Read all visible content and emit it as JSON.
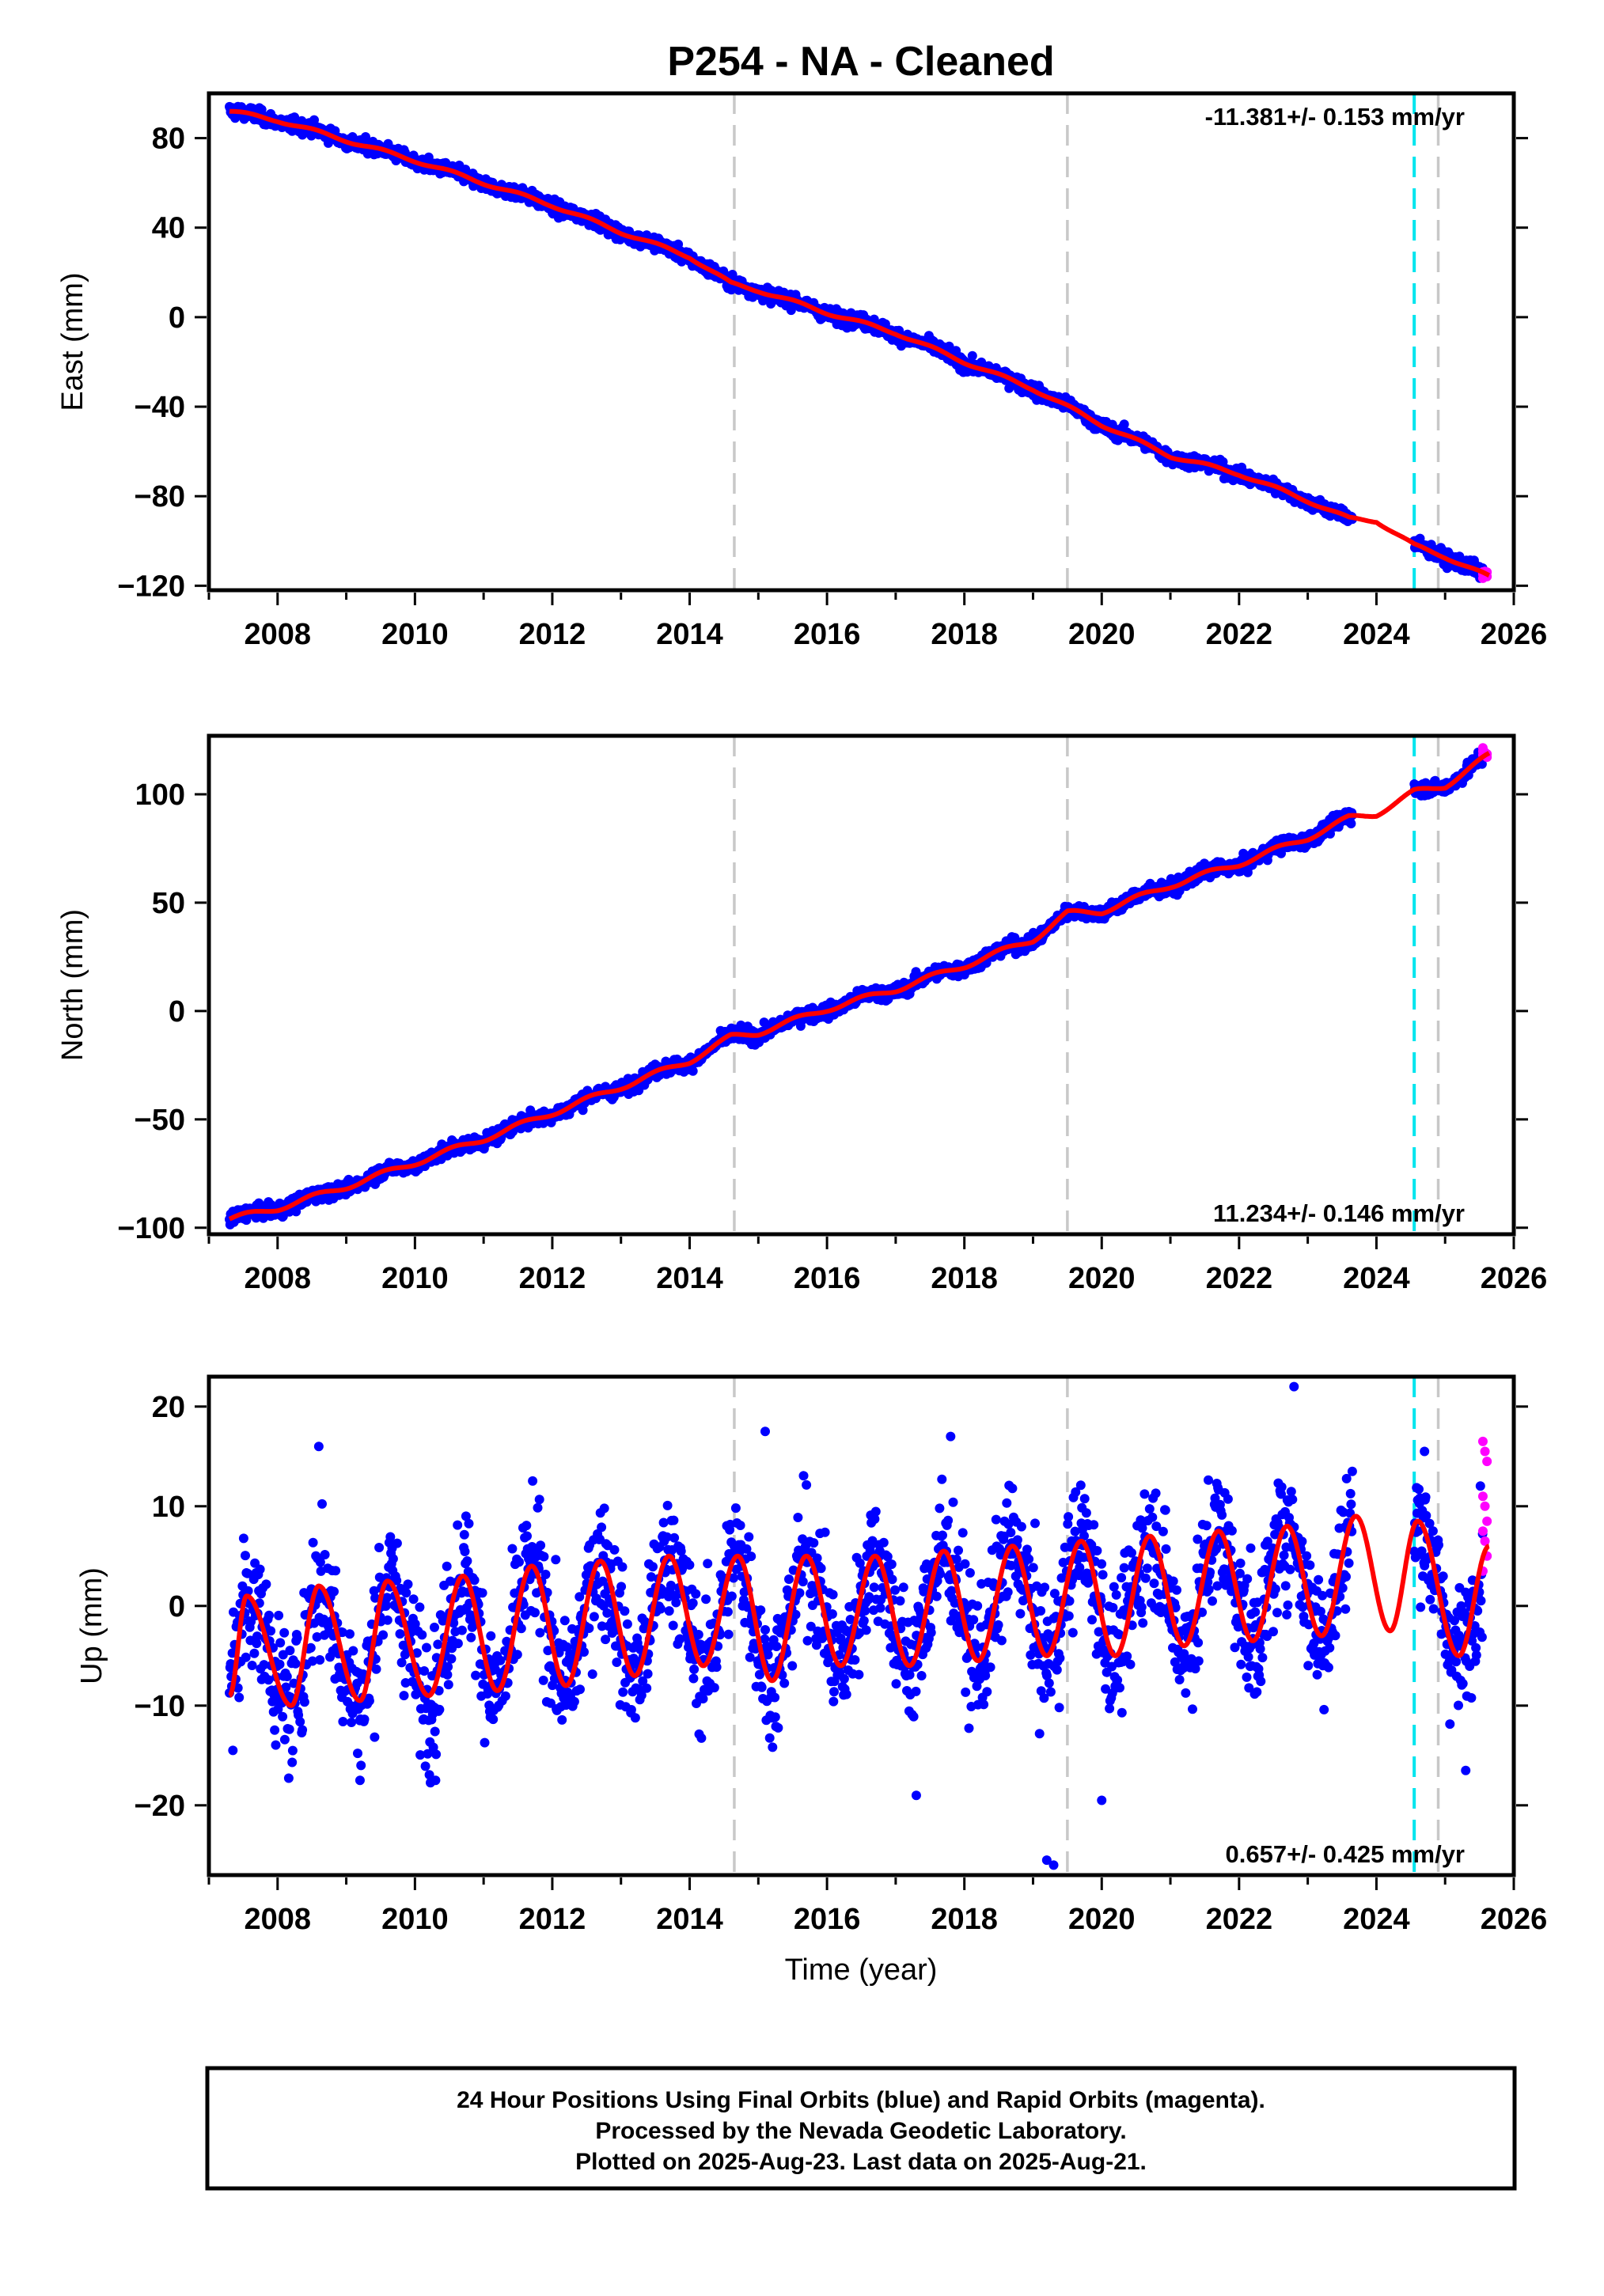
{
  "title": "P254  - NA - Cleaned",
  "xlabel": "Time (year)",
  "footer": {
    "line1": "24 Hour Positions Using Final Orbits (blue) and Rapid Orbits (magenta).",
    "line2": "Processed by the Nevada Geodetic Laboratory.",
    "line3": "Plotted on 2025-Aug-23. Last data on 2025-Aug-21."
  },
  "colors": {
    "final_orbits": "#0000ff",
    "rapid_orbits": "#ff00ff",
    "model_fit": "#ff0000",
    "event_line": "#00e5ee",
    "marker_line": "#c8c8c8"
  },
  "chart_data": [
    {
      "type": "scatter",
      "panel": "east",
      "ylabel": "East (mm)",
      "rate_text": "-11.381+/- 0.153 mm/yr",
      "rate_position": "top-right",
      "xlim": [
        2007.0,
        2026.0
      ],
      "ylim": [
        -122,
        100
      ],
      "xticks": [
        2008,
        2010,
        2012,
        2014,
        2016,
        2018,
        2020,
        2022,
        2024,
        2026
      ],
      "yticks": [
        80,
        40,
        0,
        -40,
        -80,
        -120
      ],
      "vertical_lines": [
        {
          "x": 2014.65,
          "style": "dashed",
          "color": "gray"
        },
        {
          "x": 2019.5,
          "style": "dashed",
          "color": "gray"
        },
        {
          "x": 2024.55,
          "style": "dashed",
          "color": "cyan"
        },
        {
          "x": 2024.9,
          "style": "dashed",
          "color": "gray"
        }
      ],
      "data_range": [
        2007.3,
        2025.64
      ],
      "data_gap": [
        2023.65,
        2024.55
      ],
      "fit_x": [
        2007.3,
        2008.0,
        2009.0,
        2010.0,
        2011.0,
        2012.0,
        2013.0,
        2014.0,
        2014.6,
        2015.0,
        2016.0,
        2017.0,
        2018.0,
        2019.0,
        2019.5,
        2020.0,
        2021.0,
        2022.0,
        2023.0,
        2023.6,
        2024.0,
        2024.55,
        2025.0,
        2025.64
      ],
      "fit_y": [
        92,
        88,
        79,
        70,
        60,
        50,
        38,
        27,
        15,
        12,
        2,
        -7,
        -20,
        -32,
        -40,
        -48,
        -62,
        -70,
        -82,
        -90,
        -91,
        -102,
        -107,
        -116
      ],
      "noise_sd_mm": 1.5,
      "annual_amplitude_mm": 1.5,
      "rapid_orbits": {
        "x_range": [
          2025.55,
          2025.64
        ],
        "y_center": -115,
        "spread_mm": 2.5
      }
    },
    {
      "type": "scatter",
      "panel": "north",
      "ylabel": "North (mm)",
      "rate_text": "11.234+/- 0.146 mm/yr",
      "rate_position": "bottom-right",
      "xlim": [
        2007.0,
        2026.0
      ],
      "ylim": [
        -103,
        127
      ],
      "xticks": [
        2008,
        2010,
        2012,
        2014,
        2016,
        2018,
        2020,
        2022,
        2024,
        2026
      ],
      "yticks": [
        100,
        50,
        0,
        -50,
        -100
      ],
      "vertical_lines": [
        {
          "x": 2014.65,
          "style": "dashed",
          "color": "gray"
        },
        {
          "x": 2019.5,
          "style": "dashed",
          "color": "gray"
        },
        {
          "x": 2024.55,
          "style": "dashed",
          "color": "cyan"
        },
        {
          "x": 2024.9,
          "style": "dashed",
          "color": "gray"
        }
      ],
      "data_range": [
        2007.3,
        2025.64
      ],
      "data_gap": [
        2023.65,
        2024.55
      ],
      "fit_x": [
        2007.3,
        2008.0,
        2009.0,
        2010.0,
        2011.0,
        2012.0,
        2013.0,
        2014.0,
        2014.6,
        2015.0,
        2016.0,
        2017.0,
        2018.0,
        2019.0,
        2019.5,
        2020.0,
        2021.0,
        2022.0,
        2023.0,
        2023.6,
        2024.0,
        2024.55,
        2025.0,
        2025.64
      ],
      "fit_y": [
        -96,
        -91,
        -81,
        -70,
        -59,
        -47,
        -35,
        -23,
        -12,
        -10,
        1,
        10,
        21,
        33,
        45,
        46,
        58,
        68,
        80,
        89,
        91,
        101,
        104,
        118
      ],
      "noise_sd_mm": 1.6,
      "annual_amplitude_mm": 2.5,
      "rapid_orbits": {
        "x_range": [
          2025.55,
          2025.64
        ],
        "y_center": 119,
        "spread_mm": 2.5
      }
    },
    {
      "type": "scatter",
      "panel": "up",
      "ylabel": "Up (mm)",
      "rate_text": "0.657+/- 0.425 mm/yr",
      "rate_position": "bottom-right",
      "xlim": [
        2007.0,
        2026.0
      ],
      "ylim": [
        -27,
        23
      ],
      "xticks": [
        2008,
        2010,
        2012,
        2014,
        2016,
        2018,
        2020,
        2022,
        2024,
        2026
      ],
      "yticks": [
        20,
        10,
        0,
        -10,
        -20
      ],
      "vertical_lines": [
        {
          "x": 2014.65,
          "style": "dashed",
          "color": "gray"
        },
        {
          "x": 2019.5,
          "style": "dashed",
          "color": "gray"
        },
        {
          "x": 2024.55,
          "style": "dashed",
          "color": "cyan"
        },
        {
          "x": 2024.9,
          "style": "dashed",
          "color": "gray"
        }
      ],
      "data_range": [
        2007.3,
        2025.64
      ],
      "data_gap": [
        2023.65,
        2024.55
      ],
      "annual_peaks": [
        [
          2007.55,
          1
        ],
        [
          2008.6,
          2
        ],
        [
          2009.6,
          2.5
        ],
        [
          2010.7,
          3
        ],
        [
          2011.7,
          4
        ],
        [
          2012.7,
          4.5
        ],
        [
          2013.7,
          5
        ],
        [
          2014.7,
          5
        ],
        [
          2015.7,
          5
        ],
        [
          2016.7,
          5
        ],
        [
          2017.7,
          5.5
        ],
        [
          2018.7,
          6
        ],
        [
          2019.7,
          6.5
        ],
        [
          2020.7,
          7
        ],
        [
          2021.7,
          7.5
        ],
        [
          2022.7,
          8
        ],
        [
          2023.7,
          9
        ],
        [
          2024.6,
          8.5
        ],
        [
          2025.64,
          6
        ]
      ],
      "annual_troughs": [
        [
          2007.3,
          -9
        ],
        [
          2008.2,
          -10
        ],
        [
          2009.2,
          -9.5
        ],
        [
          2010.2,
          -9
        ],
        [
          2011.2,
          -8.5
        ],
        [
          2012.2,
          -8
        ],
        [
          2013.2,
          -7
        ],
        [
          2014.2,
          -6
        ],
        [
          2015.2,
          -7.5
        ],
        [
          2016.2,
          -6
        ],
        [
          2017.2,
          -6
        ],
        [
          2018.2,
          -5.5
        ],
        [
          2019.2,
          -5
        ],
        [
          2020.2,
          -5
        ],
        [
          2021.2,
          -4
        ],
        [
          2022.2,
          -3.5
        ],
        [
          2023.2,
          -3
        ],
        [
          2024.2,
          -2.5
        ],
        [
          2025.2,
          -5
        ]
      ],
      "outliers": [
        [
          2008.6,
          16
        ],
        [
          2009.2,
          -17.5
        ],
        [
          2015.1,
          17.5
        ],
        [
          2017.3,
          -19
        ],
        [
          2017.8,
          17
        ],
        [
          2019.3,
          -26
        ],
        [
          2019.2,
          -25.5
        ],
        [
          2020.0,
          -19.5
        ],
        [
          2022.8,
          22
        ],
        [
          2025.3,
          -16.5
        ],
        [
          2024.7,
          15.5
        ],
        [
          2010.3,
          -17.5
        ]
      ],
      "rapid_orbits": {
        "x_range": [
          2025.55,
          2025.64
        ],
        "values": [
          16.5,
          15.5,
          14.5,
          11,
          10,
          8.5,
          7.5,
          6.5,
          5,
          3.5
        ]
      }
    }
  ]
}
